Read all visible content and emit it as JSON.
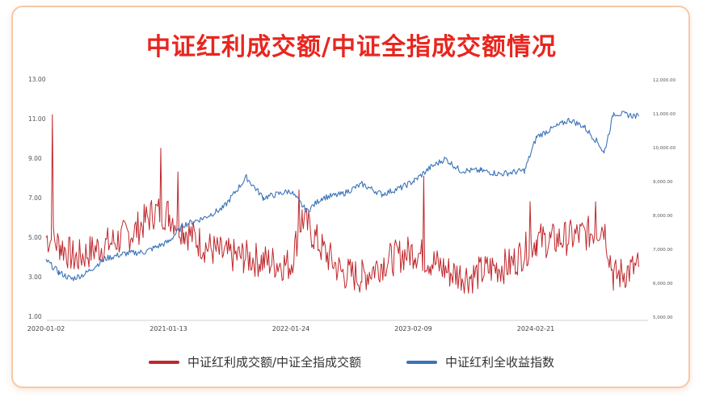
{
  "title": "中证红利成交额/中证全指成交额情况",
  "chart_data": {
    "type": "line",
    "x_ticks": [
      "2020-01-02",
      "2021-01-13",
      "2022-01-24",
      "2023-02-09",
      "2024-02-21"
    ],
    "y_left": {
      "ticks": [
        "1.00",
        "3.00",
        "5.00",
        "7.00",
        "9.00",
        "11.00",
        "13.00"
      ],
      "range": [
        1,
        13
      ]
    },
    "y_right": {
      "ticks": [
        "5,000.00",
        "6,000.00",
        "7,000.00",
        "8,000.00",
        "9,000.00",
        "10,000.00",
        "11,000.00",
        "12,000.00"
      ],
      "range": [
        5000,
        12000
      ]
    },
    "grid": false,
    "legend_position": "bottom",
    "series": [
      {
        "name": "中证红利成交额/中证全指成交额",
        "axis": "left",
        "color": "#c0282d",
        "x": [
          "2020-01-02",
          "2020-02-15",
          "2020-04-01",
          "2020-06-01",
          "2020-08-01",
          "2020-10-01",
          "2020-12-01",
          "2021-01-13",
          "2021-03-01",
          "2021-05-01",
          "2021-07-01",
          "2021-09-01",
          "2021-11-01",
          "2022-01-24",
          "2022-03-01",
          "2022-05-01",
          "2022-07-01",
          "2022-09-01",
          "2022-11-01",
          "2023-01-01",
          "2023-02-09",
          "2023-04-01",
          "2023-06-01",
          "2023-08-01",
          "2023-10-01",
          "2023-12-01",
          "2024-02-21",
          "2024-04-01",
          "2024-06-01",
          "2024-08-01",
          "2024-09-15",
          "2024-10-15",
          "2024-12-31"
        ],
        "values": [
          5.0,
          4.6,
          3.9,
          4.4,
          4.8,
          5.3,
          6.3,
          6.2,
          5.4,
          4.6,
          4.1,
          4.0,
          3.8,
          3.6,
          6.0,
          4.4,
          3.2,
          3.0,
          3.7,
          4.1,
          4.3,
          3.8,
          3.2,
          3.0,
          3.4,
          3.6,
          4.9,
          4.8,
          5.0,
          5.2,
          5.6,
          3.0,
          3.5
        ],
        "spikes": [
          {
            "x": "2020-01-20",
            "value": 11.2
          },
          {
            "x": "2020-12-20",
            "value": 9.5
          },
          {
            "x": "2021-02-10",
            "value": 8.3
          },
          {
            "x": "2022-02-20",
            "value": 7.4
          },
          {
            "x": "2023-03-10",
            "value": 8.1
          },
          {
            "x": "2024-02-01",
            "value": 6.8
          },
          {
            "x": "2024-08-20",
            "value": 6.8
          }
        ]
      },
      {
        "name": "中证红利全收益指数",
        "axis": "right",
        "color": "#3a73b8",
        "x": [
          "2020-01-02",
          "2020-02-10",
          "2020-03-20",
          "2020-05-01",
          "2020-07-01",
          "2020-09-01",
          "2020-11-01",
          "2021-01-13",
          "2021-03-01",
          "2021-05-01",
          "2021-07-01",
          "2021-09-10",
          "2021-11-01",
          "2022-01-24",
          "2022-03-15",
          "2022-05-01",
          "2022-07-01",
          "2022-09-01",
          "2022-11-01",
          "2023-01-01",
          "2023-02-09",
          "2023-04-01",
          "2023-05-15",
          "2023-07-01",
          "2023-09-01",
          "2023-11-01",
          "2024-01-15",
          "2024-02-21",
          "2024-04-01",
          "2024-06-01",
          "2024-07-15",
          "2024-08-30",
          "2024-09-15",
          "2024-10-15",
          "2024-12-31"
        ],
        "values": [
          6650,
          6300,
          6100,
          6250,
          6700,
          6850,
          6900,
          7200,
          7700,
          7900,
          8200,
          9100,
          8500,
          8700,
          8100,
          8500,
          8600,
          8900,
          8600,
          8800,
          9000,
          9400,
          9650,
          9300,
          9300,
          9200,
          9300,
          10300,
          10500,
          10800,
          10600,
          10100,
          9800,
          11000,
          10900
        ]
      }
    ]
  }
}
